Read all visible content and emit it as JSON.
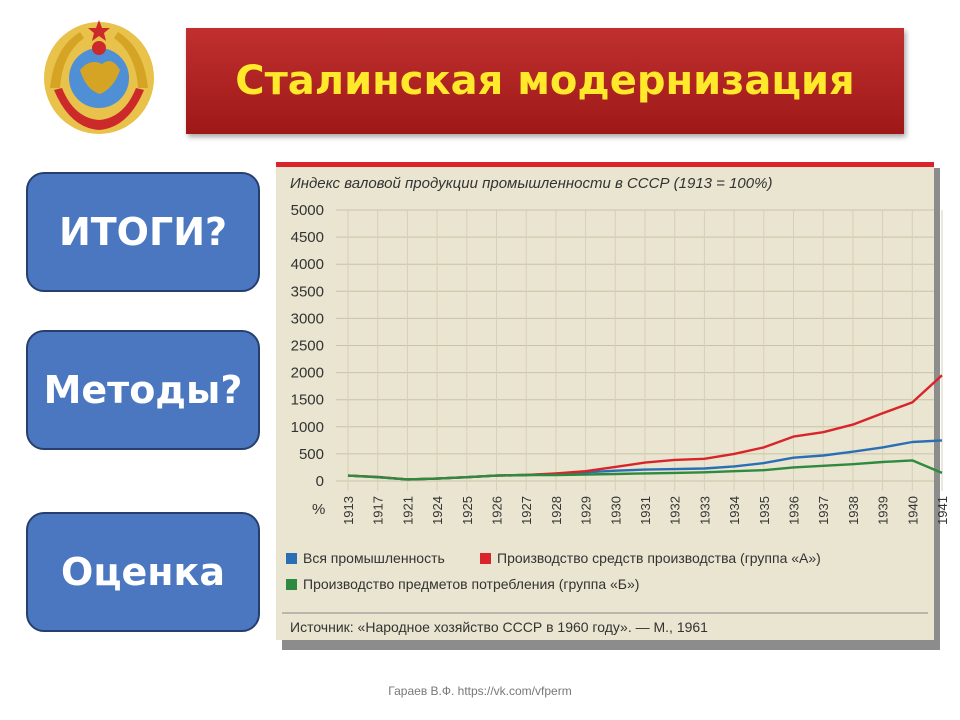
{
  "header": {
    "title": "Сталинская модернизация"
  },
  "nav": [
    {
      "label": "ИТОГИ?"
    },
    {
      "label": "Методы?"
    },
    {
      "label": "Оценка"
    }
  ],
  "footer": {
    "text": "Гараев В.Ф. https://vk.com/vfperm"
  },
  "colors": {
    "title_bg": "#b02424",
    "title_text": "#ffe92a",
    "button_bg": "#4a77c0",
    "series_total": "#2a6fb5",
    "series_a": "#d8242a",
    "series_b": "#2e8a3e"
  },
  "chart_data": {
    "type": "line",
    "title": "Индекс валовой продукции промышленности в СССР (1913 = 100%)",
    "ylabel": "%",
    "yticks": [
      "5000",
      "4500",
      "4000",
      "3500",
      "3000",
      "2500",
      "2000",
      "1500",
      "1000",
      "500",
      "0"
    ],
    "ylim": [
      0,
      5000
    ],
    "x": [
      "1913",
      "1917",
      "1921",
      "1924",
      "1925",
      "1926",
      "1927",
      "1928",
      "1929",
      "1930",
      "1931",
      "1932",
      "1933",
      "1934",
      "1935",
      "1936",
      "1937",
      "1938",
      "1939",
      "1940",
      "1941"
    ],
    "series": [
      {
        "name": "Вся промышленность",
        "color": "#2a6fb5",
        "values": [
          100,
          70,
          30,
          45,
          70,
          100,
          110,
          130,
          160,
          190,
          210,
          220,
          230,
          270,
          330,
          430,
          470,
          540,
          620,
          720,
          750
        ]
      },
      {
        "name": "Производство средств производства (группа «А»)",
        "color": "#d8242a",
        "values": [
          100,
          75,
          30,
          45,
          70,
          100,
          110,
          140,
          180,
          260,
          340,
          390,
          410,
          500,
          620,
          820,
          900,
          1040,
          1250,
          1450,
          1950
        ]
      },
      {
        "name": "Производство предметов потребления (группа «Б»)",
        "color": "#2e8a3e",
        "values": [
          100,
          70,
          30,
          45,
          70,
          100,
          110,
          110,
          120,
          130,
          140,
          150,
          160,
          180,
          200,
          250,
          280,
          310,
          350,
          380,
          150
        ]
      }
    ],
    "grid": true,
    "legend_placement": "bottom",
    "source": "Источник: «Народное хозяйство СССР в 1960 году». — М., 1961"
  }
}
